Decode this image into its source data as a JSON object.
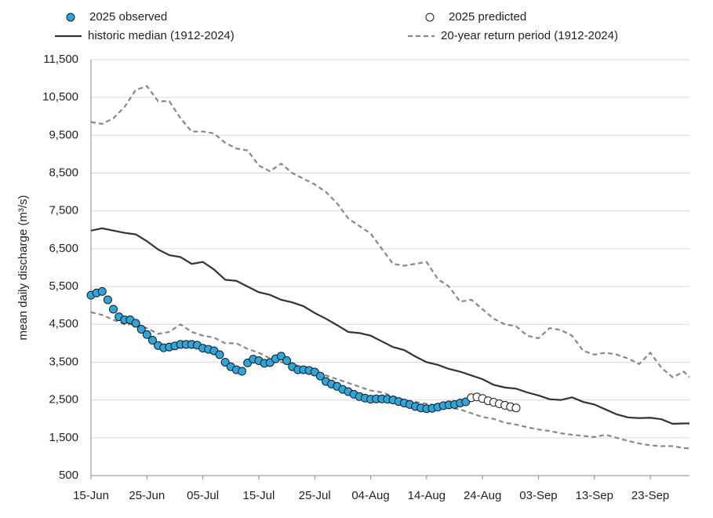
{
  "chart_data": {
    "type": "line",
    "y_label": "mean daily discharge (m³/s)",
    "xlim": [
      0,
      107
    ],
    "ylim": [
      500,
      11500
    ],
    "xticks": [
      {
        "value": 0,
        "label": "15-Jun"
      },
      {
        "value": 10,
        "label": "25-Jun"
      },
      {
        "value": 20,
        "label": "05-Jul"
      },
      {
        "value": 30,
        "label": "15-Jul"
      },
      {
        "value": 40,
        "label": "25-Jul"
      },
      {
        "value": 50,
        "label": "04-Aug"
      },
      {
        "value": 60,
        "label": "14-Aug"
      },
      {
        "value": 70,
        "label": "24-Aug"
      },
      {
        "value": 80,
        "label": "03-Sep"
      },
      {
        "value": 90,
        "label": "13-Sep"
      },
      {
        "value": 100,
        "label": "23-Sep"
      }
    ],
    "yticks": [
      500,
      {
        "value": 1500,
        "label": "1,500"
      },
      {
        "value": 2500,
        "label": "2,500"
      },
      {
        "value": 3500,
        "label": "3,500"
      },
      {
        "value": 4500,
        "label": "4,500"
      },
      {
        "value": 5500,
        "label": "5,500"
      },
      {
        "value": 6500,
        "label": "6,500"
      },
      {
        "value": 7500,
        "label": "7,500"
      },
      {
        "value": 8500,
        "label": "8,500"
      },
      {
        "value": 9500,
        "label": "9,500"
      },
      {
        "value": 10500,
        "label": "10,500"
      },
      {
        "value": 11500,
        "label": "11,500"
      }
    ],
    "grid": true,
    "series": [
      {
        "name": "2025 observed",
        "kind": "points",
        "color": "#29a8e0",
        "x": [
          0,
          1,
          2,
          3,
          4,
          5,
          6,
          7,
          8,
          9,
          10,
          11,
          12,
          13,
          14,
          15,
          16,
          17,
          18,
          19,
          20,
          21,
          22,
          23,
          24,
          25,
          26,
          27,
          28,
          29,
          30,
          31,
          32,
          33,
          34,
          35,
          36,
          37,
          38,
          39,
          40,
          41,
          42,
          43,
          44,
          45,
          46,
          47,
          48,
          49,
          50,
          51,
          52,
          53,
          54,
          55,
          56,
          57,
          58,
          59,
          60,
          61,
          62,
          63,
          64,
          65,
          66,
          67
        ],
        "values": [
          5270,
          5330,
          5370,
          5150,
          4900,
          4700,
          4620,
          4620,
          4530,
          4370,
          4230,
          4080,
          3940,
          3880,
          3900,
          3930,
          3970,
          3970,
          3970,
          3950,
          3870,
          3840,
          3800,
          3700,
          3500,
          3380,
          3300,
          3260,
          3480,
          3580,
          3540,
          3470,
          3490,
          3590,
          3660,
          3540,
          3380,
          3300,
          3300,
          3280,
          3240,
          3130,
          2990,
          2920,
          2860,
          2780,
          2720,
          2650,
          2590,
          2550,
          2520,
          2530,
          2530,
          2520,
          2500,
          2460,
          2420,
          2380,
          2330,
          2290,
          2270,
          2280,
          2310,
          2350,
          2370,
          2380,
          2420,
          2450
        ]
      },
      {
        "name": "2025 predicted",
        "kind": "points",
        "color": "#ffffff",
        "x": [
          68,
          69,
          70,
          71,
          72,
          73,
          74,
          75,
          76
        ],
        "values": [
          2560,
          2580,
          2540,
          2480,
          2440,
          2400,
          2360,
          2320,
          2290
        ]
      },
      {
        "name": "historic median (1912-2024)",
        "kind": "line",
        "color": "#333333",
        "dashed": false,
        "x": [
          0,
          2,
          4,
          6,
          8,
          10,
          12,
          14,
          16,
          18,
          20,
          22,
          24,
          26,
          28,
          30,
          32,
          34,
          36,
          38,
          40,
          42,
          44,
          46,
          48,
          50,
          52,
          54,
          56,
          58,
          60,
          62,
          64,
          66,
          68,
          70,
          72,
          74,
          76,
          78,
          80,
          82,
          84,
          86,
          88,
          90,
          92,
          94,
          96,
          98,
          100,
          102,
          104,
          106,
          107
        ],
        "values": [
          6980,
          7040,
          6980,
          6920,
          6880,
          6700,
          6480,
          6330,
          6280,
          6100,
          6150,
          5950,
          5680,
          5650,
          5500,
          5350,
          5280,
          5150,
          5080,
          4980,
          4800,
          4650,
          4480,
          4300,
          4270,
          4200,
          4050,
          3900,
          3820,
          3650,
          3500,
          3430,
          3320,
          3250,
          3150,
          3050,
          2900,
          2830,
          2800,
          2700,
          2620,
          2520,
          2500,
          2570,
          2450,
          2380,
          2250,
          2120,
          2040,
          2020,
          2030,
          1990,
          1870,
          1880,
          1880
        ]
      },
      {
        "name": "20-year return period (1912-2024)",
        "kind": "band",
        "color": "#888888",
        "dashed": true,
        "x": [
          0,
          2,
          4,
          6,
          8,
          10,
          12,
          14,
          16,
          18,
          20,
          22,
          24,
          26,
          28,
          30,
          32,
          34,
          36,
          38,
          40,
          42,
          44,
          46,
          48,
          50,
          52,
          54,
          56,
          58,
          60,
          62,
          64,
          66,
          68,
          70,
          72,
          74,
          76,
          78,
          80,
          82,
          84,
          86,
          88,
          90,
          92,
          94,
          96,
          98,
          100,
          102,
          104,
          106,
          107
        ],
        "upper": [
          9850,
          9800,
          9950,
          10250,
          10700,
          10800,
          10400,
          10400,
          9950,
          9600,
          9600,
          9550,
          9300,
          9150,
          9100,
          8700,
          8550,
          8750,
          8500,
          8350,
          8200,
          8000,
          7700,
          7300,
          7100,
          6900,
          6500,
          6100,
          6050,
          6100,
          6150,
          5700,
          5500,
          5100,
          5150,
          4900,
          4650,
          4500,
          4450,
          4200,
          4130,
          4400,
          4350,
          4200,
          3800,
          3700,
          3750,
          3700,
          3600,
          3450,
          3750,
          3350,
          3100,
          3250,
          3100
        ],
        "lower": [
          4820,
          4750,
          4620,
          4500,
          4500,
          4400,
          4250,
          4300,
          4500,
          4300,
          4200,
          4150,
          4000,
          4000,
          3850,
          3750,
          3600,
          3500,
          3450,
          3350,
          3250,
          3150,
          3050,
          2950,
          2850,
          2750,
          2700,
          2600,
          2500,
          2450,
          2400,
          2350,
          2300,
          2250,
          2150,
          2050,
          2000,
          1900,
          1850,
          1780,
          1720,
          1680,
          1620,
          1580,
          1550,
          1520,
          1580,
          1500,
          1420,
          1350,
          1300,
          1280,
          1280,
          1230,
          1220
        ]
      }
    ]
  }
}
